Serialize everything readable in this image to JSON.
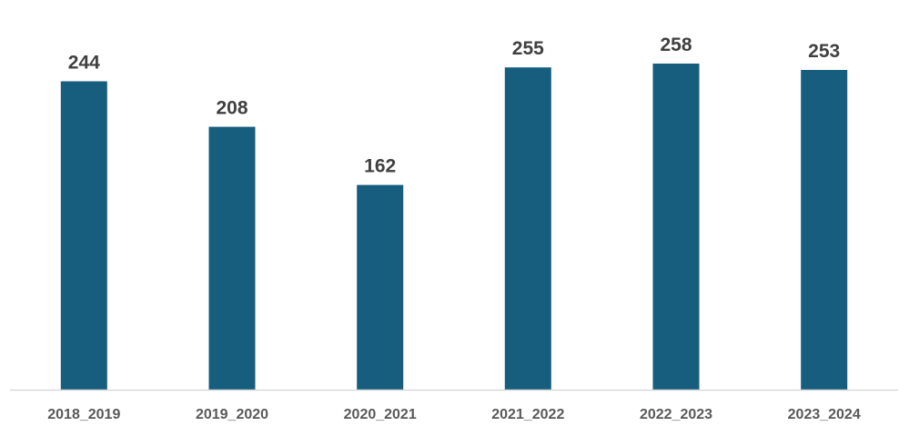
{
  "chart_data": {
    "type": "bar",
    "categories": [
      "2018_2019",
      "2019_2020",
      "2020_2021",
      "2021_2022",
      "2022_2023",
      "2023_2024"
    ],
    "values": [
      244,
      208,
      162,
      255,
      258,
      253
    ],
    "title": "",
    "xlabel": "",
    "ylabel": "",
    "ylim": [
      0,
      300
    ],
    "grid": false,
    "data_labels": true,
    "bar_color": "#175e7e",
    "axis_color": "#d9d9d9",
    "label_color": "#404040",
    "tick_color": "#595959"
  }
}
